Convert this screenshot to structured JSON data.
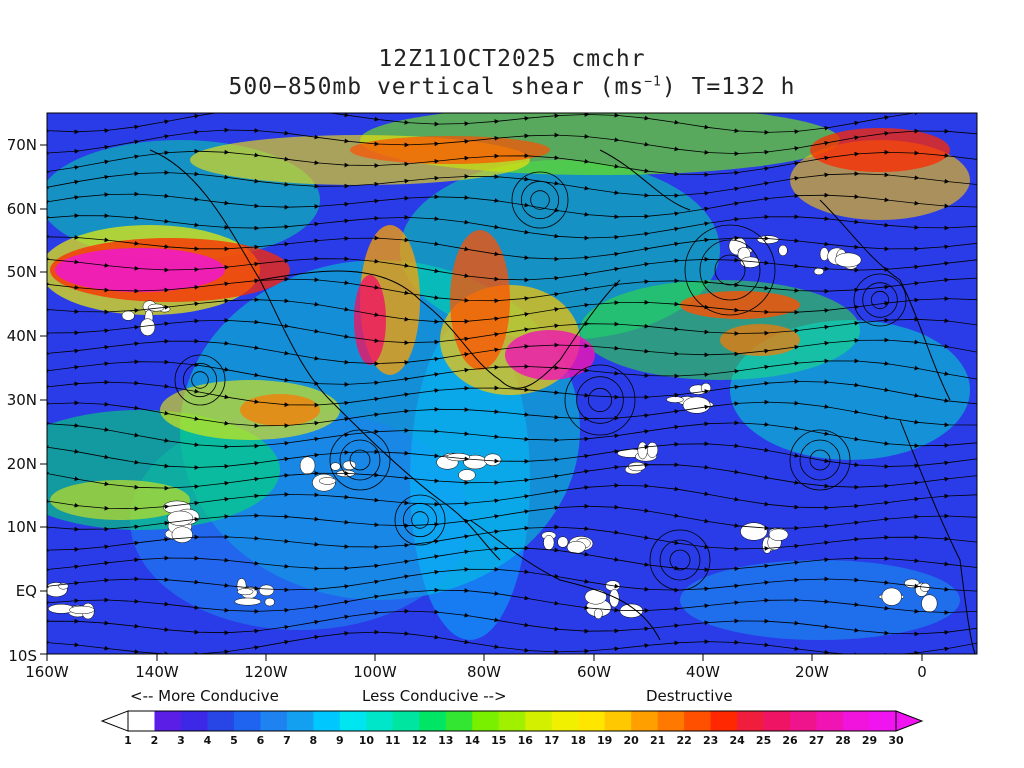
{
  "title": {
    "line1": "12Z11OCT2025 cmchr",
    "line2_pre": "500−850mb vertical shear (ms",
    "line2_sup": "−1",
    "line2_post": ") T=132 h"
  },
  "axes": {
    "lat_labels": [
      "70N",
      "60N",
      "50N",
      "40N",
      "30N",
      "20N",
      "10N",
      "EQ",
      "10S"
    ],
    "lon_labels": [
      "160W",
      "140W",
      "120W",
      "100W",
      "80W",
      "60W",
      "40W",
      "20W",
      "0"
    ]
  },
  "legend": {
    "more_conducive": "<-- More Conducive",
    "less_conducive": "Less Conducive -->",
    "destructive": "Destructive"
  },
  "colorbar": {
    "values": [
      1,
      2,
      3,
      4,
      5,
      6,
      7,
      8,
      9,
      10,
      11,
      12,
      13,
      14,
      15,
      16,
      17,
      18,
      19,
      20,
      21,
      22,
      23,
      24,
      25,
      26,
      27,
      28,
      29,
      30
    ],
    "colors": [
      "#ffffff",
      "#5a1ee6",
      "#3c28e6",
      "#2846e6",
      "#1e64f0",
      "#1e82f0",
      "#14a0f0",
      "#00c8ff",
      "#00e6f0",
      "#00e6c8",
      "#00e6a0",
      "#00e664",
      "#32e632",
      "#78f000",
      "#a0f000",
      "#d2f000",
      "#f0f000",
      "#ffe600",
      "#ffc800",
      "#ffa000",
      "#ff7800",
      "#ff5000",
      "#ff2800",
      "#f01e3c",
      "#f01464",
      "#f0148c",
      "#f014b4",
      "#f014dc",
      "#f014f0"
    ],
    "under_color": "#ffffff",
    "over_color": "#f014f0"
  }
}
